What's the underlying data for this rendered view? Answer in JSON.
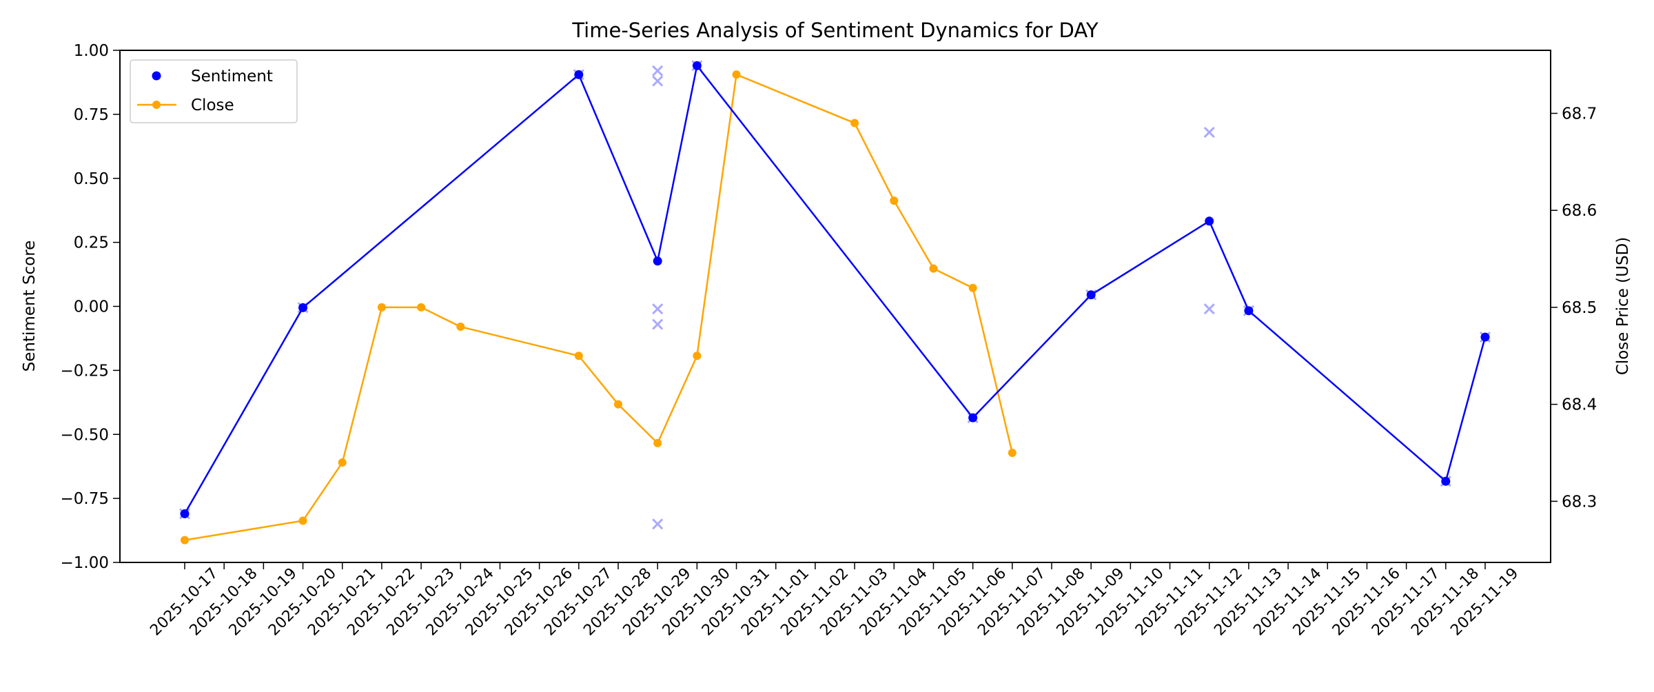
{
  "chart_data": {
    "type": "line",
    "title": "Time-Series Analysis of Sentiment Dynamics for DAY",
    "ylabel": "Sentiment Score",
    "y2label": "Close Price (USD)",
    "ylim": [
      -1.0,
      1.0
    ],
    "y2lim": [
      68.237,
      68.765
    ],
    "yticks": [
      "1.00",
      "0.75",
      "0.50",
      "0.25",
      "0.00",
      "−0.25",
      "−0.50",
      "−0.75",
      "−1.00"
    ],
    "y2ticks": [
      "68.7",
      "68.6",
      "68.5",
      "68.4",
      "68.3"
    ],
    "xticks": [
      "2025-10-17",
      "2025-10-18",
      "2025-10-19",
      "2025-10-20",
      "2025-10-21",
      "2025-10-22",
      "2025-10-23",
      "2025-10-24",
      "2025-10-25",
      "2025-10-26",
      "2025-10-27",
      "2025-10-28",
      "2025-10-29",
      "2025-10-30",
      "2025-10-31",
      "2025-11-01",
      "2025-11-02",
      "2025-11-03",
      "2025-11-04",
      "2025-11-05",
      "2025-11-06",
      "2025-11-07",
      "2025-11-08",
      "2025-11-09",
      "2025-11-10",
      "2025-11-11",
      "2025-11-12",
      "2025-11-13",
      "2025-11-14",
      "2025-11-15",
      "2025-11-16",
      "2025-11-17",
      "2025-11-18",
      "2025-11-19"
    ],
    "legend": {
      "placement": "upper-left",
      "entries": [
        "Sentiment",
        "Close"
      ]
    },
    "grid": false,
    "series": [
      {
        "name": "Sentiment",
        "axis": "left",
        "color": "#0000ff",
        "x": [
          "2025-10-17",
          "2025-10-20",
          "2025-10-27",
          "2025-10-29",
          "2025-10-30",
          "2025-11-06",
          "2025-11-09",
          "2025-11-12",
          "2025-11-13",
          "2025-11-18",
          "2025-11-19"
        ],
        "y": [
          -0.81,
          -0.005,
          0.905,
          0.177,
          0.94,
          -0.435,
          0.045,
          0.333,
          -0.017,
          -0.683,
          -0.12
        ]
      },
      {
        "name": "Close",
        "axis": "right",
        "color": "#ffa500",
        "x": [
          "2025-10-17",
          "2025-10-20",
          "2025-10-21",
          "2025-10-22",
          "2025-10-23",
          "2025-10-24",
          "2025-10-27",
          "2025-10-28",
          "2025-10-29",
          "2025-10-30",
          "2025-10-31",
          "2025-11-03",
          "2025-11-04",
          "2025-11-05",
          "2025-11-06",
          "2025-11-07"
        ],
        "y": [
          68.26,
          68.28,
          68.34,
          68.5,
          68.5,
          68.48,
          68.45,
          68.4,
          68.36,
          68.45,
          68.74,
          68.69,
          68.61,
          68.54,
          68.52,
          68.35
        ]
      },
      {
        "axis": "left",
        "type": "scatter",
        "marker": "x",
        "color": "#aaaaff",
        "x": [
          "2025-10-17",
          "2025-10-20",
          "2025-10-27",
          "2025-10-29",
          "2025-10-29",
          "2025-10-29",
          "2025-10-29",
          "2025-10-29",
          "2025-10-30",
          "2025-11-06",
          "2025-11-09",
          "2025-11-12",
          "2025-11-12",
          "2025-11-13",
          "2025-11-18",
          "2025-11-19"
        ],
        "y": [
          -0.81,
          -0.005,
          0.905,
          0.92,
          0.88,
          -0.01,
          -0.07,
          -0.85,
          0.94,
          -0.435,
          0.045,
          0.68,
          -0.01,
          -0.017,
          -0.683,
          -0.12
        ]
      }
    ]
  }
}
